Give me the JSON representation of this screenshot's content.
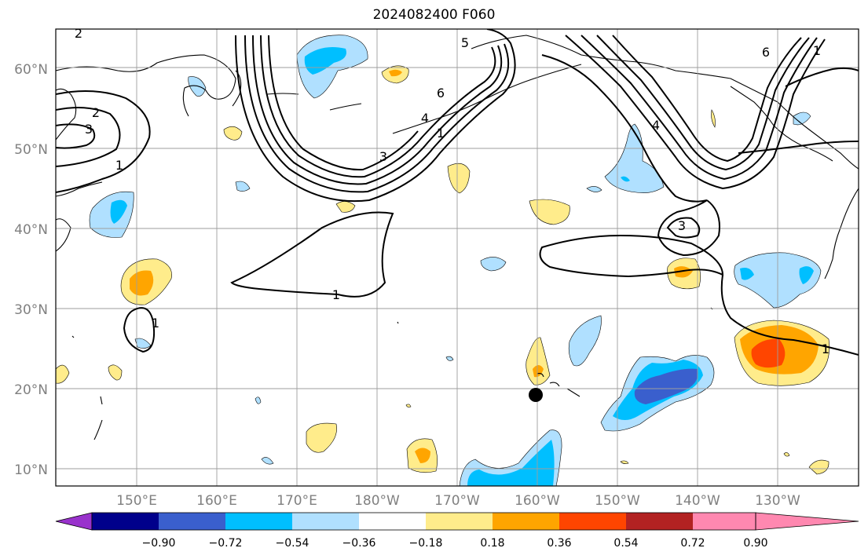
{
  "title": "2024082400 F060",
  "map": {
    "lat_labels": [
      "10°N",
      "20°N",
      "30°N",
      "40°N",
      "50°N",
      "60°N"
    ],
    "lon_labels": [
      "150°E",
      "160°E",
      "170°E",
      "180°W",
      "170°W",
      "160°W",
      "150°W",
      "140°W",
      "130°W"
    ],
    "contour_labels": [
      "1",
      "1",
      "1",
      "1",
      "1",
      "1",
      "2",
      "2",
      "3",
      "3",
      "3",
      "4",
      "4",
      "5",
      "6",
      "6"
    ],
    "marker": "storm-center-dot"
  },
  "colorbar": {
    "ticks": [
      "−0.90",
      "−0.72",
      "−0.54",
      "−0.36",
      "−0.18",
      "0.18",
      "0.36",
      "0.54",
      "0.72",
      "0.90"
    ],
    "colors": [
      "#9932cc",
      "#00008b",
      "#3a5fcd",
      "#00bfff",
      "#b0e0ff",
      "#ffffff",
      "#ffec8b",
      "#ffa500",
      "#ff4500",
      "#b22222",
      "#ff88b0"
    ]
  }
}
